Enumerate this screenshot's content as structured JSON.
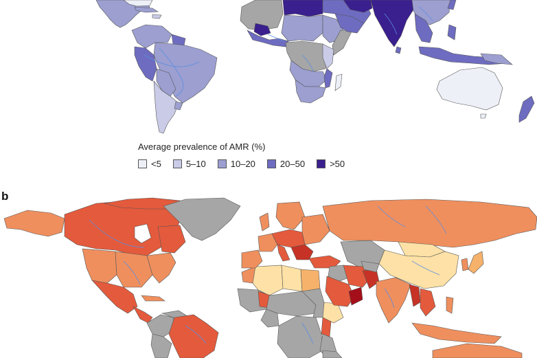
{
  "panel_b_label": "b",
  "legend": {
    "title": "Average prevalence of AMR (%)",
    "items": [
      {
        "label": "<5",
        "color": "#eef0f8"
      },
      {
        "label": "5–10",
        "color": "#c9cbe7"
      },
      {
        "label": "10–20",
        "color": "#9c9fd0"
      },
      {
        "label": "20–50",
        "color": "#6e6cc0"
      },
      {
        "label": ">50",
        "color": "#3a1f8f"
      }
    ]
  },
  "colors": {
    "no_data": "#a6a6a6",
    "rivers": "#5b8ee0",
    "border": "#555555",
    "water": "#ffffff",
    "panel_b_scale": [
      "#fde1a6",
      "#f6b26b",
      "#ef8f5e",
      "#e45a3c",
      "#c63326",
      "#a50f1a"
    ]
  }
}
